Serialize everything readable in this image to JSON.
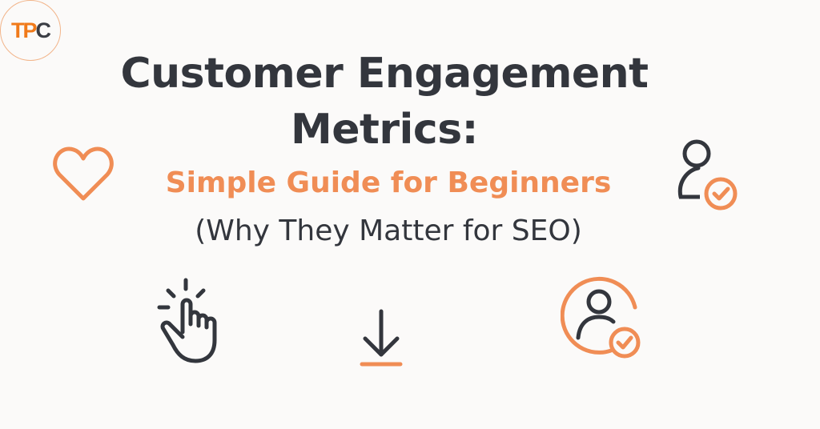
{
  "title": {
    "line1": "Customer Engagement",
    "line2": "Metrics:"
  },
  "subtitle": "Simple Guide for Beginners",
  "tagline": "(Why They Matter for SEO)",
  "logo": {
    "text_orange": "TP",
    "text_dark": "C"
  },
  "colors": {
    "dark": "#33363d",
    "accent": "#f08d55",
    "background": "#fbfaf9"
  },
  "icons": [
    "heart-icon",
    "user-check-icon",
    "click-hand-icon",
    "download-icon",
    "user-circle-check-icon"
  ]
}
